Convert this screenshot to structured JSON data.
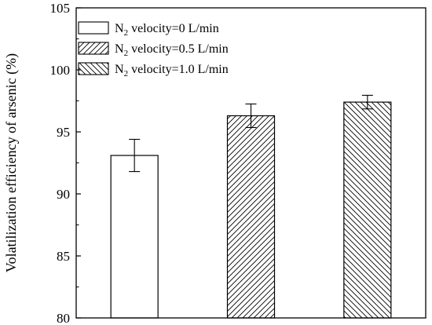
{
  "chart_data": {
    "type": "bar",
    "title": "",
    "xlabel": "",
    "ylabel": "Volatilization efficiency of arsenic (%)",
    "ylim": [
      80,
      105
    ],
    "yticks": [
      80,
      85,
      90,
      95,
      100,
      105
    ],
    "grid": false,
    "legend_position": "top-left",
    "series": [
      {
        "name": "N2 velocity=0 L/min",
        "label_main": "N",
        "label_sub": "2",
        "label_rest": " velocity=0 L/min",
        "value": 93.1,
        "error": 1.3,
        "pattern": "none"
      },
      {
        "name": "N2 velocity=0.5 L/min",
        "label_main": "N",
        "label_sub": "2",
        "label_rest": " velocity=0.5 L/min",
        "value": 96.3,
        "error": 0.95,
        "pattern": "forward-diagonal"
      },
      {
        "name": "N2 velocity=1.0 L/min",
        "label_main": "N",
        "label_sub": "2",
        "label_rest": " velocity=1.0 L/min",
        "value": 97.4,
        "error": 0.55,
        "pattern": "backward-diagonal"
      }
    ]
  }
}
